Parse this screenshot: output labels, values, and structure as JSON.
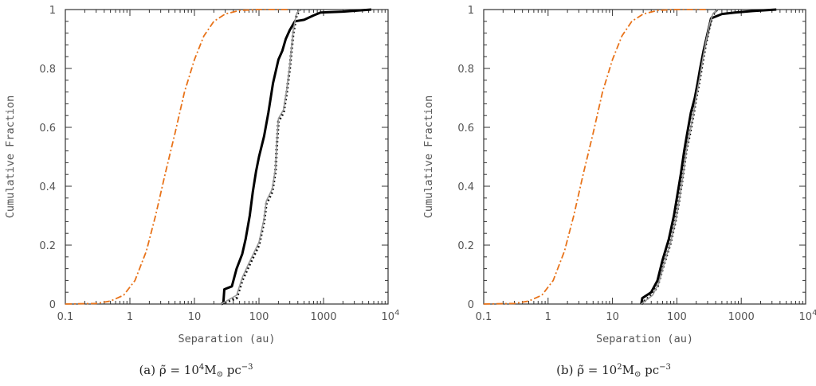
{
  "chart_data": [
    {
      "type": "line",
      "panel": "a",
      "caption_prefix": "(a) ",
      "caption_symbol": "ρ̃ = 10",
      "caption_exp": "4",
      "caption_units": "M",
      "caption_sun": "⊙",
      "caption_pc": " pc",
      "caption_pc_exp": "−3",
      "xlabel": "Separation (au)",
      "ylabel": "Cumulative Fraction",
      "xscale": "log",
      "xlim": [
        0.1,
        10000
      ],
      "ylim": [
        0,
        1
      ],
      "x_ticks": [
        "0.1",
        "1",
        "10",
        "100",
        "1000",
        "10"
      ],
      "x_tick_last_exp": "4",
      "y_ticks": [
        "0",
        "0.2",
        "0.4",
        "0.6",
        "0.8",
        "1"
      ],
      "series": [
        {
          "style": "orange-dashdot",
          "color": "#e8731a",
          "points": [
            [
              0.1,
              0
            ],
            [
              0.3,
              0.002
            ],
            [
              0.5,
              0.01
            ],
            [
              0.8,
              0.03
            ],
            [
              1.2,
              0.08
            ],
            [
              1.8,
              0.18
            ],
            [
              2.5,
              0.3
            ],
            [
              3.5,
              0.44
            ],
            [
              5,
              0.58
            ],
            [
              7,
              0.72
            ],
            [
              10,
              0.83
            ],
            [
              14,
              0.91
            ],
            [
              20,
              0.96
            ],
            [
              30,
              0.985
            ],
            [
              50,
              0.997
            ],
            [
              100,
              1.0
            ],
            [
              300,
              1.0
            ]
          ]
        },
        {
          "style": "black-solid",
          "color": "#000000",
          "points": [
            [
              28,
              0
            ],
            [
              29,
              0.05
            ],
            [
              38,
              0.06
            ],
            [
              45,
              0.12
            ],
            [
              55,
              0.17
            ],
            [
              62,
              0.22
            ],
            [
              72,
              0.3
            ],
            [
              80,
              0.38
            ],
            [
              90,
              0.45
            ],
            [
              100,
              0.5
            ],
            [
              120,
              0.57
            ],
            [
              140,
              0.65
            ],
            [
              165,
              0.75
            ],
            [
              200,
              0.83
            ],
            [
              230,
              0.86
            ],
            [
              260,
              0.9
            ],
            [
              300,
              0.93
            ],
            [
              360,
              0.96
            ],
            [
              500,
              0.965
            ],
            [
              700,
              0.98
            ],
            [
              900,
              0.99
            ],
            [
              2000,
              0.993
            ],
            [
              5500,
              1.0
            ]
          ]
        },
        {
          "style": "black-dotted",
          "color": "#111111",
          "points": [
            [
              26,
              0
            ],
            [
              45,
              0.02
            ],
            [
              55,
              0.08
            ],
            [
              70,
              0.13
            ],
            [
              100,
              0.2
            ],
            [
              120,
              0.28
            ],
            [
              130,
              0.34
            ],
            [
              160,
              0.38
            ],
            [
              180,
              0.45
            ],
            [
              190,
              0.55
            ],
            [
              200,
              0.62
            ],
            [
              240,
              0.65
            ],
            [
              270,
              0.72
            ],
            [
              300,
              0.8
            ],
            [
              340,
              0.92
            ],
            [
              380,
              0.98
            ],
            [
              430,
              1.0
            ]
          ]
        },
        {
          "style": "grey-solid",
          "color": "#9a9a9a",
          "points": [
            [
              26,
              0
            ],
            [
              45,
              0.03
            ],
            [
              55,
              0.09
            ],
            [
              70,
              0.14
            ],
            [
              100,
              0.21
            ],
            [
              120,
              0.29
            ],
            [
              130,
              0.35
            ],
            [
              160,
              0.39
            ],
            [
              180,
              0.46
            ],
            [
              190,
              0.56
            ],
            [
              200,
              0.63
            ],
            [
              240,
              0.66
            ],
            [
              270,
              0.73
            ],
            [
              300,
              0.81
            ],
            [
              340,
              0.93
            ],
            [
              380,
              0.985
            ],
            [
              430,
              1.0
            ]
          ]
        }
      ]
    },
    {
      "type": "line",
      "panel": "b",
      "caption_prefix": "(b) ",
      "caption_symbol": "ρ̃ = 10",
      "caption_exp": "2",
      "caption_units": "M",
      "caption_sun": "⊙",
      "caption_pc": " pc",
      "caption_pc_exp": "−3",
      "xlabel": "Separation (au)",
      "ylabel": "Cumulative Fraction",
      "xscale": "log",
      "xlim": [
        0.1,
        10000
      ],
      "ylim": [
        0,
        1
      ],
      "x_ticks": [
        "0.1",
        "1",
        "10",
        "100",
        "1000",
        "10"
      ],
      "x_tick_last_exp": "4",
      "y_ticks": [
        "0",
        "0.2",
        "0.4",
        "0.6",
        "0.8",
        "1"
      ],
      "series": [
        {
          "style": "orange-dashdot",
          "color": "#e8731a",
          "points": [
            [
              0.1,
              0
            ],
            [
              0.3,
              0.002
            ],
            [
              0.5,
              0.01
            ],
            [
              0.8,
              0.03
            ],
            [
              1.2,
              0.08
            ],
            [
              1.8,
              0.18
            ],
            [
              2.5,
              0.3
            ],
            [
              3.5,
              0.44
            ],
            [
              5,
              0.58
            ],
            [
              7,
              0.72
            ],
            [
              10,
              0.83
            ],
            [
              14,
              0.91
            ],
            [
              20,
              0.96
            ],
            [
              30,
              0.985
            ],
            [
              50,
              0.997
            ],
            [
              100,
              1.0
            ],
            [
              300,
              1.0
            ]
          ]
        },
        {
          "style": "black-solid",
          "color": "#000000",
          "points": [
            [
              28,
              0
            ],
            [
              29,
              0.02
            ],
            [
              40,
              0.04
            ],
            [
              50,
              0.08
            ],
            [
              60,
              0.15
            ],
            [
              75,
              0.22
            ],
            [
              90,
              0.3
            ],
            [
              100,
              0.36
            ],
            [
              115,
              0.44
            ],
            [
              130,
              0.52
            ],
            [
              145,
              0.58
            ],
            [
              165,
              0.65
            ],
            [
              190,
              0.7
            ],
            [
              210,
              0.75
            ],
            [
              230,
              0.8
            ],
            [
              260,
              0.86
            ],
            [
              300,
              0.92
            ],
            [
              340,
              0.97
            ],
            [
              500,
              0.985
            ],
            [
              800,
              0.99
            ],
            [
              1500,
              0.995
            ],
            [
              3500,
              1.0
            ]
          ]
        },
        {
          "style": "black-dotted",
          "color": "#111111",
          "points": [
            [
              28,
              0
            ],
            [
              40,
              0.03
            ],
            [
              50,
              0.06
            ],
            [
              62,
              0.13
            ],
            [
              78,
              0.2
            ],
            [
              95,
              0.28
            ],
            [
              110,
              0.36
            ],
            [
              125,
              0.44
            ],
            [
              140,
              0.52
            ],
            [
              160,
              0.58
            ],
            [
              180,
              0.64
            ],
            [
              200,
              0.7
            ],
            [
              225,
              0.76
            ],
            [
              250,
              0.82
            ],
            [
              280,
              0.88
            ],
            [
              320,
              0.94
            ],
            [
              360,
              0.98
            ],
            [
              420,
              1.0
            ]
          ]
        },
        {
          "style": "grey-solid",
          "color": "#9a9a9a",
          "points": [
            [
              28,
              0
            ],
            [
              42,
              0.03
            ],
            [
              52,
              0.07
            ],
            [
              64,
              0.14
            ],
            [
              80,
              0.21
            ],
            [
              97,
              0.29
            ],
            [
              112,
              0.37
            ],
            [
              127,
              0.45
            ],
            [
              142,
              0.53
            ],
            [
              162,
              0.59
            ],
            [
              182,
              0.65
            ],
            [
              202,
              0.71
            ],
            [
              227,
              0.77
            ],
            [
              252,
              0.83
            ],
            [
              282,
              0.89
            ],
            [
              322,
              0.95
            ],
            [
              362,
              0.985
            ],
            [
              420,
              1.0
            ]
          ]
        }
      ]
    }
  ]
}
